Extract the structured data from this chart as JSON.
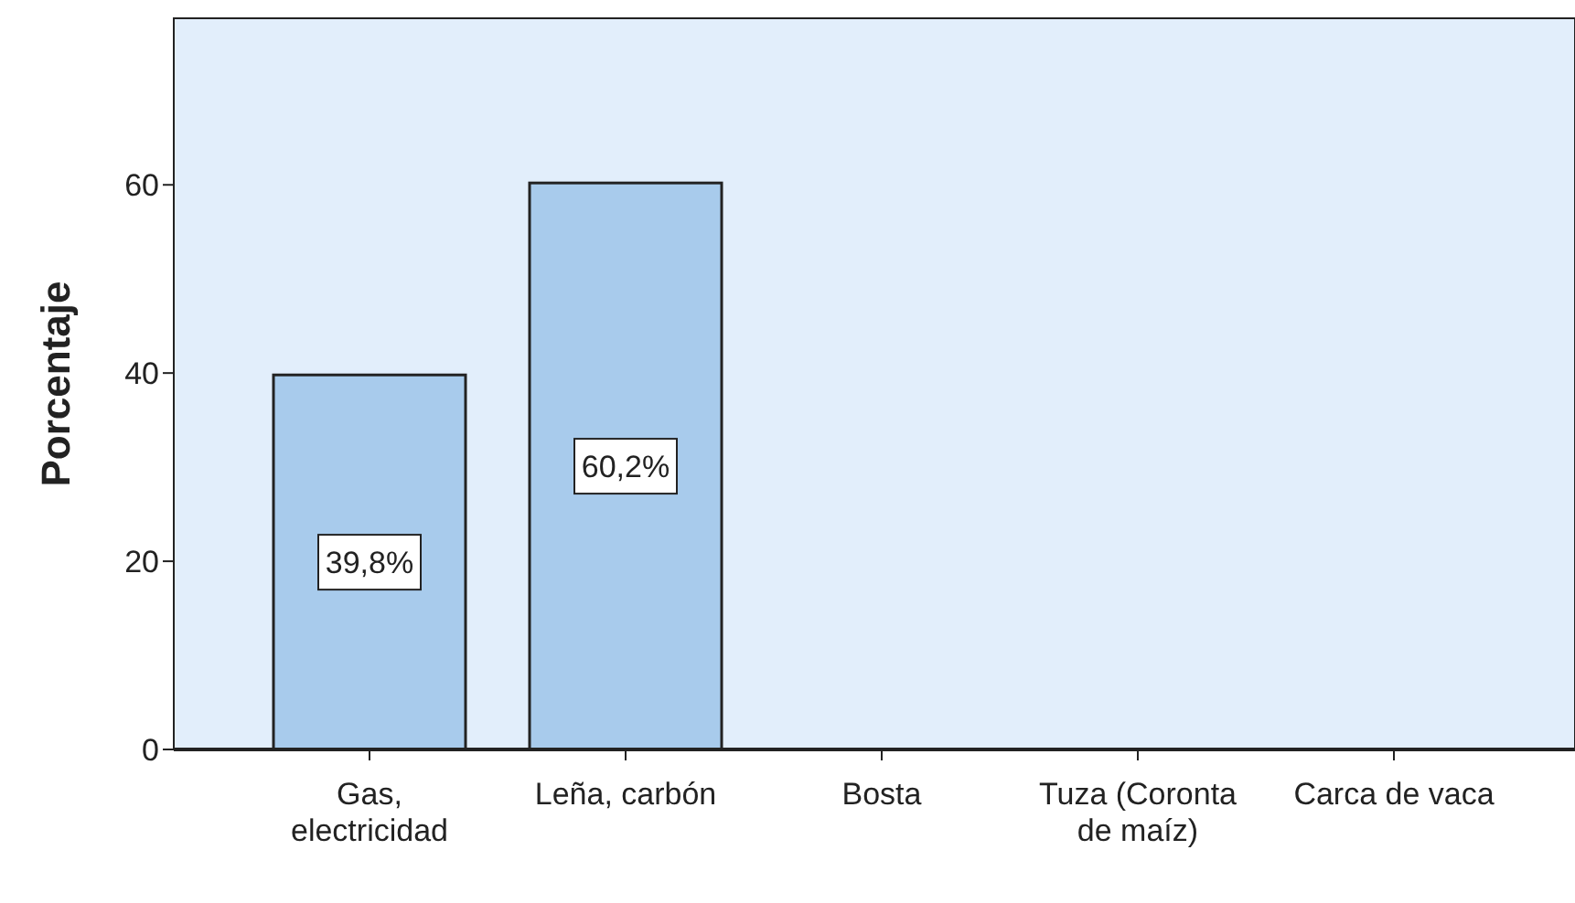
{
  "chart_data": {
    "type": "bar",
    "ylabel": "Porcentaje",
    "categories": [
      "Gas, electricidad",
      "Leña, carbón",
      "Bosta",
      "Tuza (Coronta de maíz)",
      "Carca de vaca"
    ],
    "values": [
      39.8,
      60.2,
      0,
      0,
      0
    ],
    "value_labels": [
      "39,8%",
      "60,2%",
      null,
      null,
      null
    ],
    "color": "#a8cbec",
    "ylim": [
      0,
      77.7
    ],
    "yticks": [
      0,
      20,
      40,
      60
    ],
    "grid": false
  }
}
